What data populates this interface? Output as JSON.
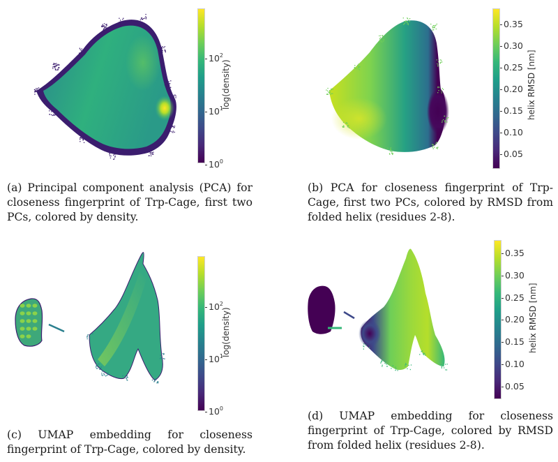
{
  "figure": {
    "panels": [
      {
        "id": "a",
        "caption": "(a) Principal component analysis (PCA) for closeness fingerprint of Trp-Cage, first two PCs, colored by density.",
        "colorbar": {
          "label": "log(density)",
          "scale": "log",
          "ticks": [
            {
              "base": "10",
              "exp": "2"
            },
            {
              "base": "10",
              "exp": "1"
            },
            {
              "base": "10",
              "exp": "0"
            }
          ]
        }
      },
      {
        "id": "b",
        "caption": "(b) PCA for closeness fingerprint of Trp-Cage, first two PCs, colored by RMSD from folded helix (residues 2-8).",
        "colorbar": {
          "label": "helix RMSD [nm]",
          "scale": "linear",
          "ticks": [
            "0.35",
            "0.30",
            "0.25",
            "0.20",
            "0.15",
            "0.10",
            "0.05"
          ]
        }
      },
      {
        "id": "c",
        "caption": "(c) UMAP embedding for closeness fingerprint of Trp-Cage, colored by density.",
        "colorbar": {
          "label": "log(density)",
          "scale": "log",
          "ticks": [
            {
              "base": "10",
              "exp": "2"
            },
            {
              "base": "10",
              "exp": "1"
            },
            {
              "base": "10",
              "exp": "0"
            }
          ]
        }
      },
      {
        "id": "d",
        "caption": "(d) UMAP embedding for closeness fingerprint of Trp-Cage, colored by RMSD from folded helix (residues 2-8).",
        "colorbar": {
          "label": "helix RMSD [nm]",
          "scale": "linear",
          "ticks": [
            "0.35",
            "0.30",
            "0.25",
            "0.20",
            "0.15",
            "0.10",
            "0.05"
          ]
        }
      }
    ],
    "colormap": [
      "#440154",
      "#482878",
      "#3e4989",
      "#31688e",
      "#26828e",
      "#1f9e89",
      "#35b779",
      "#6ece58",
      "#b5de2b",
      "#fde725"
    ]
  },
  "chart_data": [
    {
      "type": "scatter",
      "title": "PCA (first two PCs), colored by density",
      "xlabel": "",
      "ylabel": "",
      "color_variable": "log(density)",
      "color_range": [
        1,
        800
      ],
      "color_scale": "log",
      "colorbar_ticks": [
        "10^0",
        "10^1",
        "10^2"
      ],
      "notes": "Single dense blob; highest density (yellow) hotspot at right edge, mid-height; sparse low-density (purple) fringe."
    },
    {
      "type": "scatter",
      "title": "PCA (first two PCs), colored by helix RMSD",
      "xlabel": "",
      "ylabel": "",
      "color_variable": "helix RMSD [nm]",
      "color_range": [
        0.02,
        0.38
      ],
      "colorbar_ticks": [
        0.05,
        0.1,
        0.15,
        0.2,
        0.25,
        0.3,
        0.35
      ],
      "notes": "Low RMSD (purple, ~0.02-0.05 nm) concentrated at right edge; high RMSD (yellow, ~0.35 nm) at lower-left."
    },
    {
      "type": "scatter",
      "title": "UMAP embedding, colored by density",
      "xlabel": "",
      "ylabel": "",
      "color_variable": "log(density)",
      "color_range": [
        1,
        800
      ],
      "color_scale": "log",
      "colorbar_ticks": [
        "10^0",
        "10^1",
        "10^2"
      ],
      "notes": "Small island on the left and large fan-shaped cluster on the right, mostly mid-density (green)."
    },
    {
      "type": "scatter",
      "title": "UMAP embedding, colored by helix RMSD",
      "xlabel": "",
      "ylabel": "",
      "color_variable": "helix RMSD [nm]",
      "color_range": [
        0.02,
        0.38
      ],
      "colorbar_ticks": [
        0.05,
        0.1,
        0.15,
        0.2,
        0.25,
        0.3,
        0.35
      ],
      "notes": "Left island is low RMSD (purple, folded); large right cluster mostly high RMSD (green-yellow) with purple region at its left edge."
    }
  ]
}
